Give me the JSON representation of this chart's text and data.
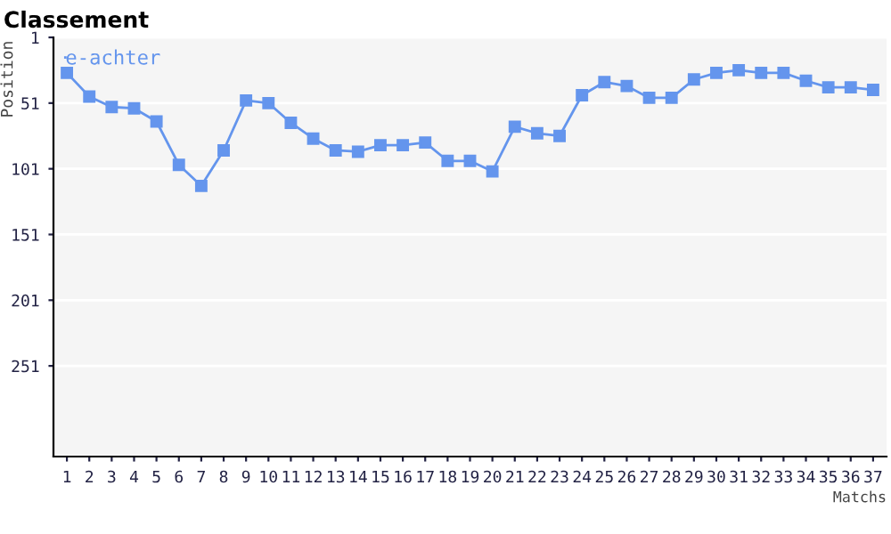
{
  "chart_data": {
    "type": "line",
    "title": "Classement",
    "xlabel": "Matchs",
    "ylabel": "Position",
    "categories": [
      "1",
      "2",
      "3",
      "4",
      "5",
      "6",
      "7",
      "8",
      "9",
      "10",
      "11",
      "12",
      "13",
      "14",
      "15",
      "16",
      "17",
      "18",
      "19",
      "20",
      "21",
      "22",
      "23",
      "24",
      "25",
      "26",
      "27",
      "28",
      "29",
      "30",
      "31",
      "32",
      "33",
      "34",
      "35",
      "36",
      "37"
    ],
    "series": [
      {
        "name": "e-achter",
        "color": "#6495ed",
        "values": [
          28,
          46,
          54,
          55,
          65,
          98,
          114,
          87,
          49,
          51,
          66,
          78,
          87,
          88,
          83,
          83,
          81,
          95,
          95,
          103,
          69,
          74,
          76,
          45,
          35,
          38,
          47,
          47,
          33,
          28,
          26,
          28,
          28,
          34,
          39,
          39,
          41
        ]
      }
    ],
    "ylim": [
      320,
      1
    ],
    "yticks": [
      1,
      51,
      101,
      151,
      201,
      251
    ],
    "grid": "y",
    "legend": "top left",
    "marker": "square",
    "line_style": "solid"
  }
}
